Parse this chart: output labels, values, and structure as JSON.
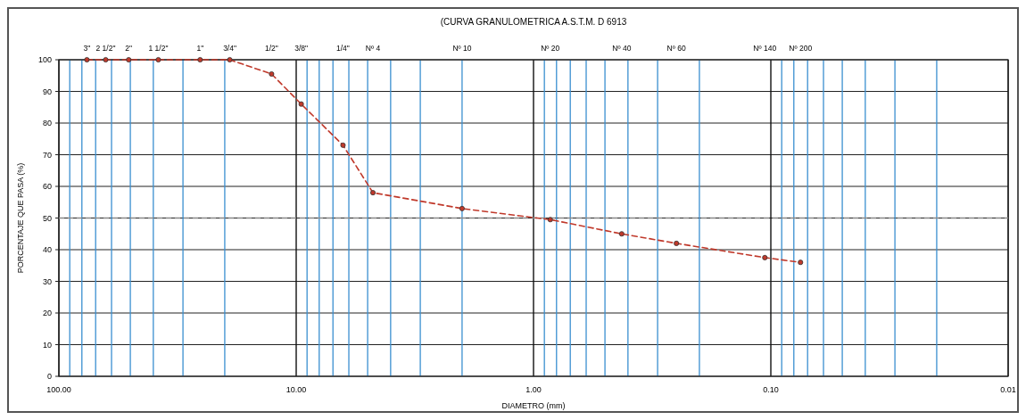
{
  "chart_data": {
    "type": "line",
    "title": "(CURVA GRANULOMETRICA A.S.T.M. D 6913",
    "xlabel": "DIAMETRO (mm)",
    "ylabel": "PORCENTAJE QUE PASA (%)",
    "log": "x",
    "xlim": [
      100,
      0.01
    ],
    "ylim": [
      0,
      100
    ],
    "xticks": [
      {
        "value": 100,
        "label": "100.00"
      },
      {
        "value": 90,
        "label": null
      },
      {
        "value": 80,
        "label": null
      },
      {
        "value": 70,
        "label": null
      },
      {
        "value": 60,
        "label": null
      },
      {
        "value": 50,
        "label": null
      },
      {
        "value": 40,
        "label": null
      },
      {
        "value": 30,
        "label": null
      },
      {
        "value": 20,
        "label": null
      },
      {
        "value": 10,
        "label": "10.00"
      },
      {
        "value": 9,
        "label": null
      },
      {
        "value": 8,
        "label": null
      },
      {
        "value": 7,
        "label": null
      },
      {
        "value": 6,
        "label": null
      },
      {
        "value": 5,
        "label": null
      },
      {
        "value": 4,
        "label": null
      },
      {
        "value": 3,
        "label": null
      },
      {
        "value": 2,
        "label": null
      },
      {
        "value": 1,
        "label": "1.00"
      },
      {
        "value": 0.9,
        "label": null
      },
      {
        "value": 0.8,
        "label": null
      },
      {
        "value": 0.7,
        "label": null
      },
      {
        "value": 0.6,
        "label": null
      },
      {
        "value": 0.5,
        "label": null
      },
      {
        "value": 0.4,
        "label": null
      },
      {
        "value": 0.3,
        "label": null
      },
      {
        "value": 0.2,
        "label": null
      },
      {
        "value": 0.1,
        "label": "0.10"
      },
      {
        "value": 0.09,
        "label": null
      },
      {
        "value": 0.08,
        "label": null
      },
      {
        "value": 0.07,
        "label": null
      },
      {
        "value": 0.06,
        "label": null
      },
      {
        "value": 0.05,
        "label": null
      },
      {
        "value": 0.04,
        "label": null
      },
      {
        "value": 0.03,
        "label": null
      },
      {
        "value": 0.02,
        "label": null
      },
      {
        "value": 0.01,
        "label": "0.01"
      }
    ],
    "annotations": [
      "3\"",
      "2 1/2\"",
      "2\"",
      "1 1/2\"",
      "1\"",
      "3/4\"",
      "1/2\"",
      "3/8\"",
      "1/4\"",
      "Nº 4",
      "Nº 10",
      "Nº 20",
      "Nº 40",
      "Nº 60",
      "Nº 140",
      "Nº 200"
    ],
    "yticks": [
      0,
      10,
      20,
      30,
      40,
      50,
      60,
      70,
      80,
      90,
      100
    ],
    "grid": true,
    "marker": "circle",
    "line_style": "dashed",
    "ref_lines": [
      {
        "axis": "y",
        "value": 50,
        "color": "#888888",
        "line_style": "dashed"
      }
    ],
    "x": [
      76.2,
      63.5,
      50.8,
      38.1,
      25.4,
      19.05,
      12.7,
      9.525,
      6.35,
      4.75,
      2,
      0.85,
      0.425,
      0.25,
      0.106,
      0.075
    ],
    "series": [
      {
        "color": "#c0392b",
        "values": [
          100,
          100,
          100,
          100,
          100,
          100,
          95.5,
          86,
          73,
          58,
          53,
          49.5,
          45,
          42,
          37.5,
          36
        ]
      }
    ]
  }
}
